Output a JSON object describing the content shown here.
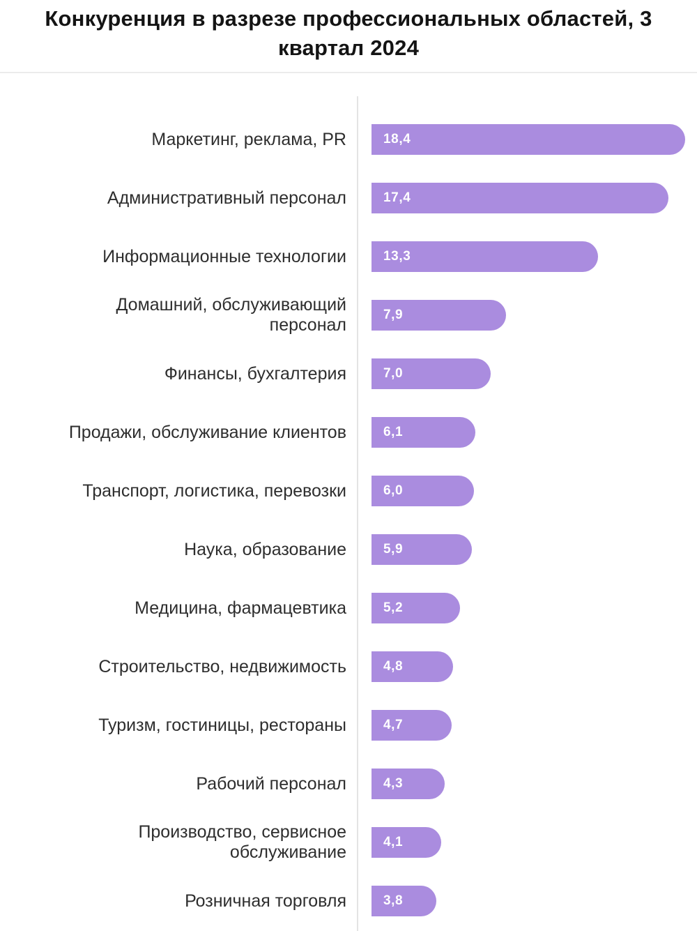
{
  "title": "Конкуренция в разрезе профессиональных областей, 3 квартал 2024",
  "colors": {
    "bar": "#aa8cdf",
    "value_text": "#ffffff",
    "label_text": "#2e2e2e",
    "title_text": "#141414",
    "axis_line": "#e4e4e4",
    "divider": "#ebebeb",
    "background": "#ffffff"
  },
  "chart_data": {
    "type": "bar",
    "orientation": "horizontal",
    "title": "Конкуренция в разрезе профессиональных областей, 3 квартал 2024",
    "categories": [
      "Маркетинг, реклама, PR",
      "Административный персонал",
      "Информационные технологии",
      "Домашний, обслуживающий\nперсонал",
      "Финансы, бухгалтерия",
      "Продажи, обслуживание клиентов",
      "Транспорт, логистика, перевозки",
      "Наука, образование",
      "Медицина, фармацевтика",
      "Строительство, недвижимость",
      "Туризм, гостиницы, рестораны",
      "Рабочий персонал",
      "Производство, сервисное\nобслуживание",
      "Розничная торговля"
    ],
    "values": [
      18.4,
      17.4,
      13.3,
      7.9,
      7.0,
      6.1,
      6.0,
      5.9,
      5.2,
      4.8,
      4.7,
      4.3,
      4.1,
      3.8
    ],
    "value_labels": [
      "18,4",
      "17,4",
      "13,3",
      "7,9",
      "7,0",
      "6,1",
      "6,0",
      "5,9",
      "5,2",
      "4,8",
      "4,7",
      "4,3",
      "4,1",
      "3,8"
    ],
    "xlabel": "",
    "ylabel": "",
    "xlim": [
      0,
      18.4
    ],
    "grid": false,
    "legend": false,
    "value_label_position": "inside-start",
    "decimal_separator": ","
  }
}
